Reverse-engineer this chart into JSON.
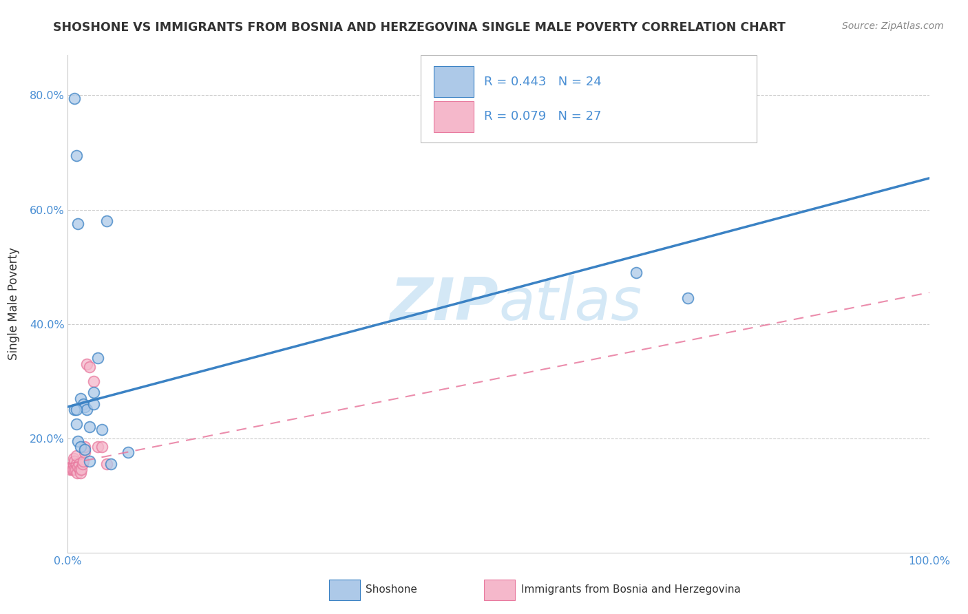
{
  "title": "SHOSHONE VS IMMIGRANTS FROM BOSNIA AND HERZEGOVINA SINGLE MALE POVERTY CORRELATION CHART",
  "source": "Source: ZipAtlas.com",
  "ylabel": "Single Male Poverty",
  "xlim": [
    0,
    1.0
  ],
  "ylim": [
    0,
    0.87
  ],
  "shoshone_R": 0.443,
  "shoshone_N": 24,
  "bosnia_R": 0.079,
  "bosnia_N": 27,
  "shoshone_color": "#adc9e8",
  "shoshone_line_color": "#3b82c4",
  "bosnia_color": "#f5b8cb",
  "bosnia_line_color": "#e8799e",
  "watermark_color": "#d0e6f5",
  "shoshone_x": [
    0.008,
    0.01,
    0.012,
    0.015,
    0.018,
    0.02,
    0.022,
    0.025,
    0.03,
    0.035,
    0.04,
    0.05,
    0.008,
    0.01,
    0.01,
    0.012,
    0.015,
    0.02,
    0.025,
    0.03,
    0.66,
    0.72,
    0.045,
    0.07
  ],
  "shoshone_y": [
    0.795,
    0.695,
    0.575,
    0.27,
    0.26,
    0.255,
    0.25,
    0.22,
    0.26,
    0.34,
    0.215,
    0.155,
    0.25,
    0.25,
    0.225,
    0.195,
    0.185,
    0.18,
    0.16,
    0.28,
    0.49,
    0.445,
    0.58,
    0.175
  ],
  "bosnia_x": [
    0.003,
    0.004,
    0.005,
    0.006,
    0.007,
    0.007,
    0.008,
    0.008,
    0.009,
    0.01,
    0.01,
    0.011,
    0.012,
    0.013,
    0.014,
    0.015,
    0.016,
    0.017,
    0.018,
    0.02,
    0.02,
    0.022,
    0.025,
    0.03,
    0.035,
    0.04,
    0.045
  ],
  "bosnia_y": [
    0.145,
    0.15,
    0.145,
    0.145,
    0.155,
    0.165,
    0.145,
    0.16,
    0.145,
    0.155,
    0.17,
    0.14,
    0.15,
    0.155,
    0.145,
    0.14,
    0.145,
    0.155,
    0.16,
    0.175,
    0.185,
    0.33,
    0.325,
    0.3,
    0.185,
    0.185,
    0.155
  ],
  "shoshone_trendline": [
    0.255,
    0.655
  ],
  "bosnia_trendline": [
    0.155,
    0.455
  ],
  "grid_color": "#cccccc",
  "tick_color": "#4a8fd4",
  "title_color": "#333333",
  "source_color": "#888888"
}
